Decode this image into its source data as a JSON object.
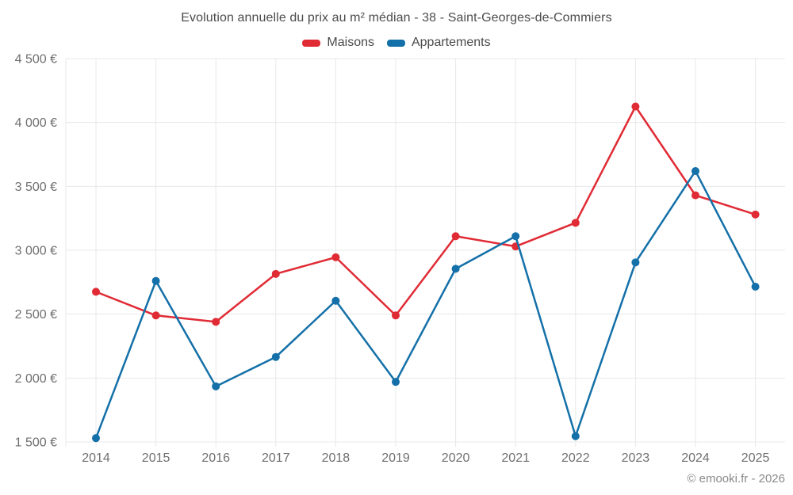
{
  "title": "Evolution annuelle du prix au m² médian - 38 - Saint-Georges-de-Commiers",
  "legend": [
    {
      "label": "Maisons",
      "color": "#e02b35"
    },
    {
      "label": "Appartements",
      "color": "#1470a8"
    }
  ],
  "attribution": "© emooki.fr - 2026",
  "chart_data": {
    "type": "line",
    "title": "Evolution annuelle du prix au m² médian - 38 - Saint-Georges-de-Commiers",
    "categories": [
      "2014",
      "2015",
      "2016",
      "2017",
      "2018",
      "2019",
      "2020",
      "2021",
      "2022",
      "2023",
      "2024",
      "2025"
    ],
    "series": [
      {
        "name": "Maisons",
        "color": "#e02b35",
        "values": [
          2675,
          2490,
          2440,
          2815,
          2945,
          2490,
          3110,
          3030,
          3215,
          4125,
          3430,
          3280
        ]
      },
      {
        "name": "Appartements",
        "color": "#1470a8",
        "values": [
          1530,
          2760,
          1935,
          2165,
          2605,
          1970,
          2855,
          3110,
          1545,
          2905,
          3620,
          2715
        ]
      }
    ],
    "xlabel": "",
    "ylabel": "",
    "ylim": [
      1500,
      4500
    ],
    "ytick_step": 500,
    "ytick_suffix": " €",
    "grid": true,
    "legend_position": "top",
    "marker": "circle"
  }
}
